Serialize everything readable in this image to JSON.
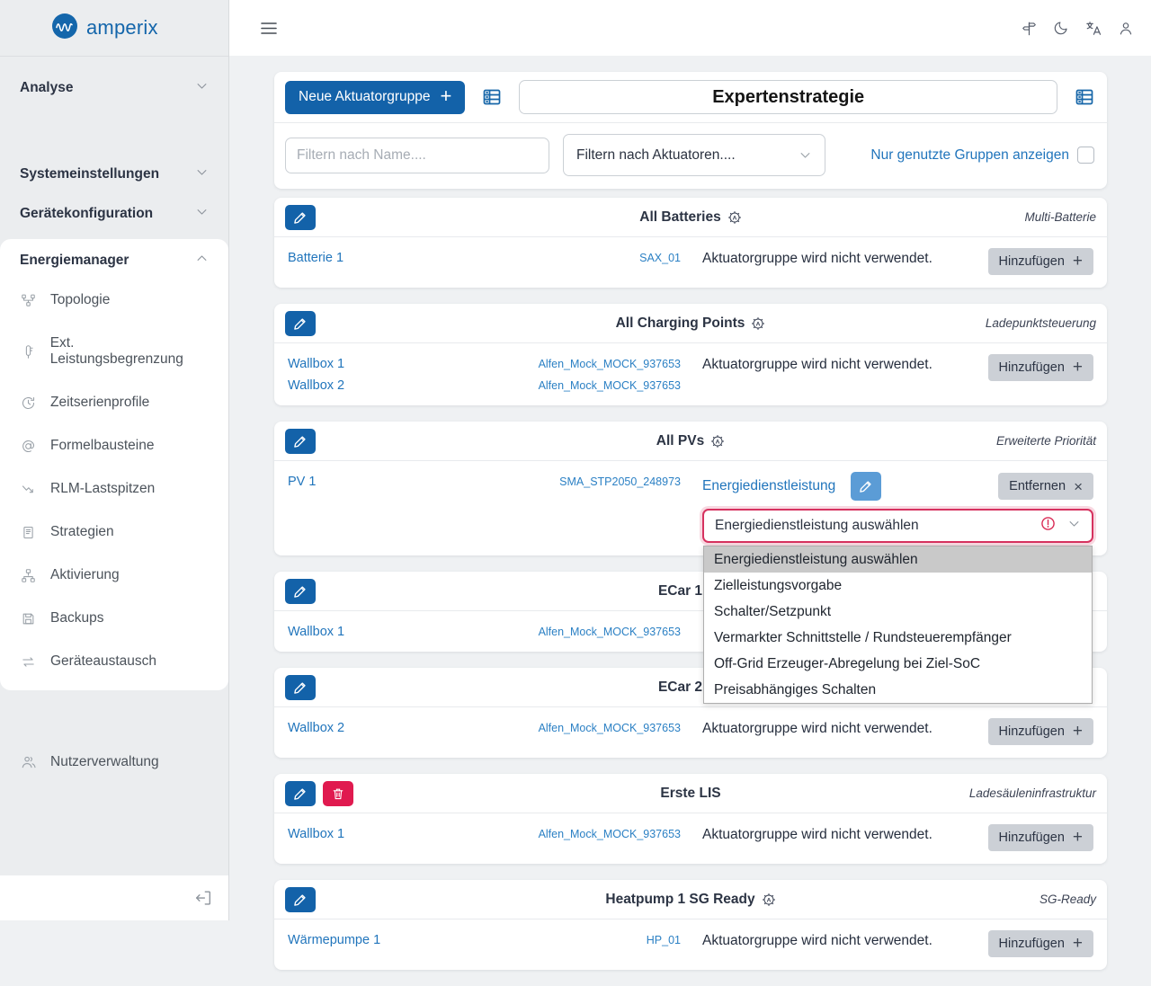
{
  "brand": {
    "name": "amperix"
  },
  "topbar": {
    "menu_icon": "hamburger-icon",
    "icons": [
      "signpost-icon",
      "moon-icon",
      "language-icon",
      "user-icon"
    ]
  },
  "sidebar": {
    "sections": [
      {
        "label": "Analyse",
        "state": "collapsed"
      },
      {
        "label": "Systemeinstellungen",
        "state": "collapsed"
      },
      {
        "label": "Gerätekonfiguration",
        "state": "collapsed"
      },
      {
        "label": "Energiemanager",
        "state": "expanded",
        "items": [
          {
            "label": "Topologie",
            "icon": "topology-icon"
          },
          {
            "label": "Ext. Leistungsbegrenzung",
            "icon": "power-limit-icon"
          },
          {
            "label": "Zeitserienprofile",
            "icon": "timeseries-icon"
          },
          {
            "label": "Formelbausteine",
            "icon": "formula-icon"
          },
          {
            "label": "RLM-Lastspitzen",
            "icon": "load-peaks-icon"
          },
          {
            "label": "Strategien",
            "icon": "strategies-icon"
          },
          {
            "label": "Aktivierung",
            "icon": "activation-icon"
          },
          {
            "label": "Backups",
            "icon": "backups-icon"
          },
          {
            "label": "Geräteaustausch",
            "icon": "device-swap-icon"
          }
        ]
      },
      {
        "label": "Nutzerverwaltung",
        "icon": "users-icon"
      }
    ],
    "footer_icon": "collapse-sidebar-icon"
  },
  "toolbar": {
    "new_group_label": "Neue Aktuatorgruppe",
    "strategy_title": "Expertenstrategie",
    "filter_name_placeholder": "Filtern nach Name....",
    "filter_actuators_value": "Filtern nach Aktuatoren....",
    "show_used_only_label": "Nur genutzte Gruppen anzeigen",
    "show_used_only_checked": false
  },
  "common": {
    "add_label": "Hinzufügen",
    "remove_label": "Entfernen",
    "unused_status": "Aktuatorgruppe wird nicht verwendet."
  },
  "cards": [
    {
      "title": "All Batteries",
      "badge": true,
      "deletable": false,
      "type_label": "Multi-Batterie",
      "devices": [
        {
          "name": "Batterie 1",
          "id": "SAX_01"
        }
      ],
      "status": "Aktuatorgruppe wird nicht verwendet.",
      "action": "add"
    },
    {
      "title": "All Charging Points",
      "badge": true,
      "deletable": false,
      "type_label": "Ladepunktsteuerung",
      "devices": [
        {
          "name": "Wallbox 1",
          "id": "Alfen_Mock_MOCK_937653"
        },
        {
          "name": "Wallbox 2",
          "id": "Alfen_Mock_MOCK_937653"
        }
      ],
      "status": "Aktuatorgruppe wird nicht verwendet.",
      "action": "add"
    },
    {
      "title": "All PVs",
      "badge": true,
      "deletable": false,
      "type_label": "Erweiterte Priorität",
      "devices": [
        {
          "name": "PV 1",
          "id": "SMA_STP2050_248973"
        }
      ],
      "status": null,
      "action": null,
      "service": {
        "label": "Energiedienstleistung"
      },
      "select": {
        "value": "Energiedienstleistung auswählen",
        "error": true,
        "open": true,
        "selected_index": 0,
        "options": [
          "Energiedienstleistung auswählen",
          "Zielleistungsvorgabe",
          "Schalter/Setzpunkt",
          "Vermarkter Schnittstelle / Rundsteuerempfänger",
          "Off-Grid Erzeuger-Abregelung bei Ziel-SoC",
          "Preisabhängiges Schalten"
        ]
      }
    },
    {
      "title": "ECar 1",
      "badge": true,
      "deletable": false,
      "type_label": null,
      "devices": [
        {
          "name": "Wallbox 1",
          "id": "Alfen_Mock_MOCK_937653"
        }
      ],
      "status": null,
      "action": null
    },
    {
      "title": "ECar 2",
      "badge": true,
      "deletable": false,
      "type_label": null,
      "devices": [
        {
          "name": "Wallbox 2",
          "id": "Alfen_Mock_MOCK_937653"
        }
      ],
      "status": "Aktuatorgruppe wird nicht verwendet.",
      "action": "add"
    },
    {
      "title": "Erste LIS",
      "badge": false,
      "deletable": true,
      "type_label": "Ladesäuleninfrastruktur",
      "devices": [
        {
          "name": "Wallbox 1",
          "id": "Alfen_Mock_MOCK_937653"
        }
      ],
      "status": "Aktuatorgruppe wird nicht verwendet.",
      "action": "add"
    },
    {
      "title": "Heatpump 1 SG Ready",
      "badge": true,
      "deletable": false,
      "type_label": "SG-Ready",
      "devices": [
        {
          "name": "Wärmepumpe 1",
          "id": "HP_01"
        }
      ],
      "status": "Aktuatorgruppe wird nicht verwendet.",
      "action": "add"
    }
  ]
}
